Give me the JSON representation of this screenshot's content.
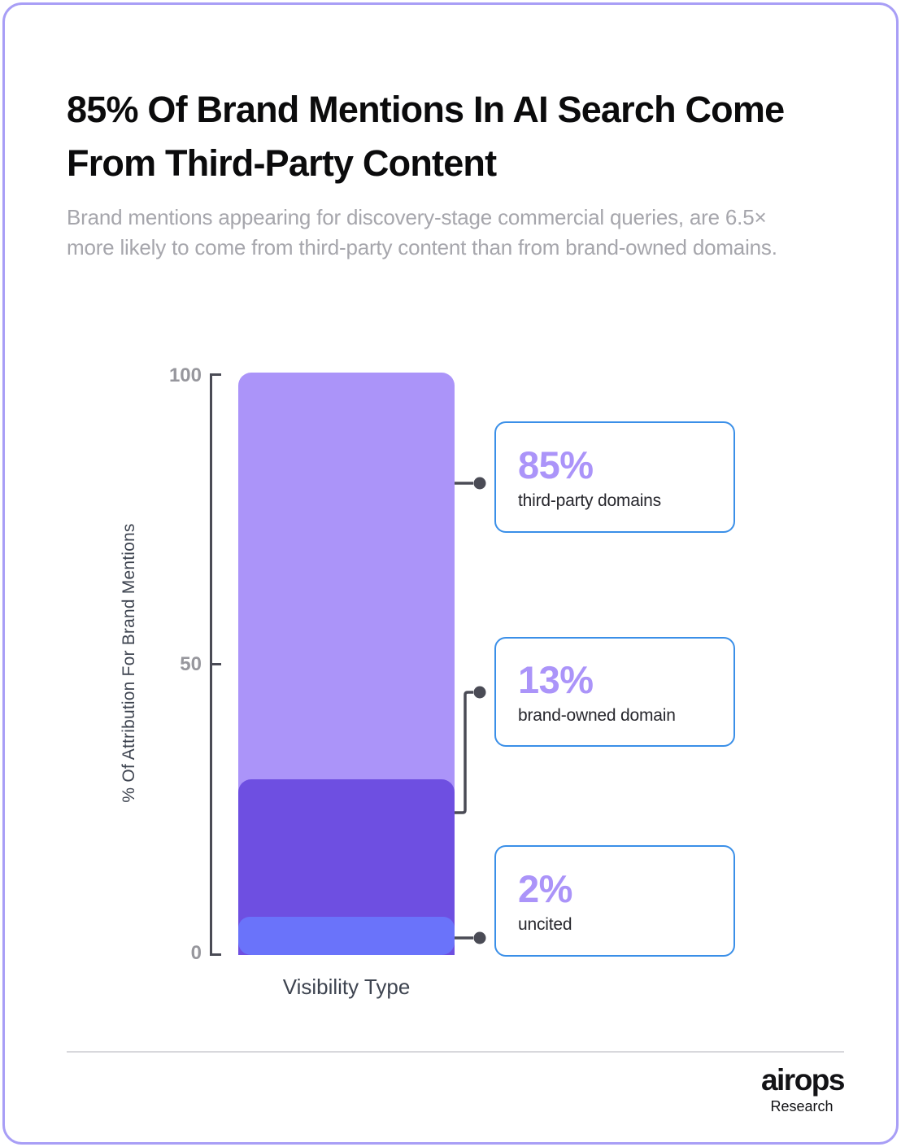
{
  "header": {
    "title": "85% Of Brand Mentions In AI Search Come From Third-Party Content",
    "subtitle": "Brand mentions appearing for discovery-stage commercial queries, are 6.5× more likely to come from third-party content than from brand-owned domains."
  },
  "chart_data": {
    "type": "bar",
    "stacked": true,
    "categories": [
      "Visibility Type"
    ],
    "series": [
      {
        "name": "third-party domains",
        "value": 85,
        "color": "#ab94f9",
        "display_height_pct": 69.8
      },
      {
        "name": "brand-owned domain",
        "value": 13,
        "color": "#6e4fe1",
        "display_height_pct": 23.7
      },
      {
        "name": "uncited",
        "value": 2,
        "color": "#6a73fa",
        "display_height_pct": 6.5
      }
    ],
    "xlabel": "Visibility Type",
    "ylabel": "% Of Attribution For Brand Mentions",
    "ylim": [
      0,
      100
    ],
    "yticks": [
      100,
      50,
      0
    ],
    "ytick_labels": [
      "100",
      "50",
      "0"
    ],
    "grid": "off",
    "legend": "none"
  },
  "callouts": [
    {
      "value": "85%",
      "label": "third-party domains"
    },
    {
      "value": "13%",
      "label": "brand-owned domain"
    },
    {
      "value": "2%",
      "label": "uncited"
    }
  ],
  "footer": {
    "logo": "airops",
    "sublabel": "Research"
  },
  "colors": {
    "card_border": "#a89ef6",
    "segment_light_purple": "#ab94f9",
    "segment_dark_purple": "#6e4fe1",
    "segment_blue": "#6a73fa",
    "callout_border": "#3a8fe8",
    "callout_value": "#ab94f9",
    "axis": "#4a4b55",
    "tick_label": "#97979d",
    "subtitle_text": "#a6a6ac"
  }
}
